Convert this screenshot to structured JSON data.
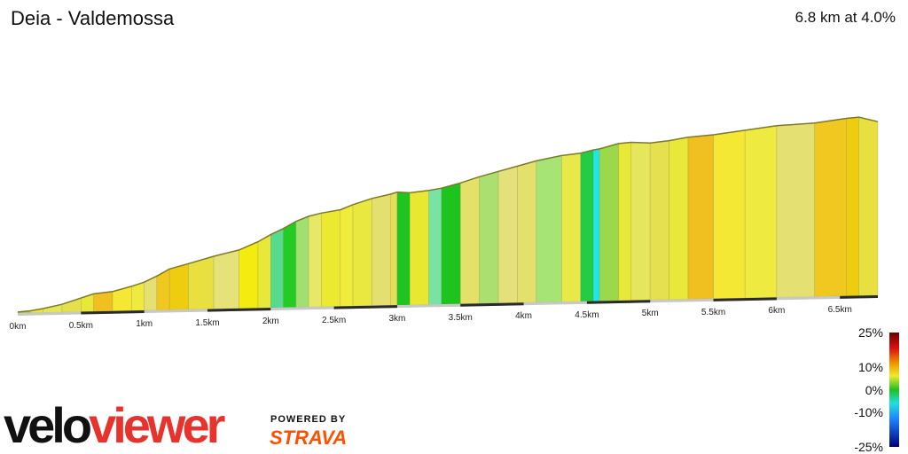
{
  "header": {
    "title": "Deia - Valdemossa",
    "summary": "6.8 km at 4.0%"
  },
  "chart_data": {
    "type": "area",
    "title": "Deia - Valdemossa",
    "xlabel": "",
    "ylabel": "",
    "x_ticks": [
      "0km",
      "0.5km",
      "1km",
      "1.5km",
      "2km",
      "2.5km",
      "3km",
      "3.5km",
      "4km",
      "4.5km",
      "5km",
      "5.5km",
      "6km",
      "6.5km"
    ],
    "xlim": [
      0,
      6.8
    ],
    "profile": [
      [
        0.0,
        1
      ],
      [
        0.1,
        2
      ],
      [
        0.2,
        4
      ],
      [
        0.35,
        8
      ],
      [
        0.5,
        14
      ],
      [
        0.6,
        18
      ],
      [
        0.75,
        20
      ],
      [
        0.9,
        25
      ],
      [
        1.0,
        29
      ],
      [
        1.1,
        35
      ],
      [
        1.2,
        42
      ],
      [
        1.35,
        47
      ],
      [
        1.55,
        54
      ],
      [
        1.75,
        60
      ],
      [
        1.9,
        68
      ],
      [
        2.0,
        75
      ],
      [
        2.1,
        81
      ],
      [
        2.2,
        88
      ],
      [
        2.3,
        93
      ],
      [
        2.4,
        96
      ],
      [
        2.55,
        99
      ],
      [
        2.65,
        104
      ],
      [
        2.8,
        110
      ],
      [
        2.95,
        114
      ],
      [
        3.0,
        116
      ],
      [
        3.1,
        115
      ],
      [
        3.25,
        117
      ],
      [
        3.35,
        119
      ],
      [
        3.5,
        124
      ],
      [
        3.65,
        130
      ],
      [
        3.8,
        135
      ],
      [
        3.95,
        140
      ],
      [
        4.1,
        145
      ],
      [
        4.3,
        150
      ],
      [
        4.45,
        152
      ],
      [
        4.55,
        155
      ],
      [
        4.6,
        156
      ],
      [
        4.75,
        161
      ],
      [
        4.85,
        162
      ],
      [
        5.0,
        161
      ],
      [
        5.15,
        163
      ],
      [
        5.3,
        166
      ],
      [
        5.5,
        168
      ],
      [
        5.75,
        172
      ],
      [
        6.0,
        176
      ],
      [
        6.3,
        178
      ],
      [
        6.55,
        182
      ],
      [
        6.65,
        183
      ],
      [
        6.8,
        178
      ]
    ],
    "segment_colors": [
      "#9bd84a",
      "#e8e838",
      "#e6e65c",
      "#e4e04e",
      "#e8e838",
      "#f0c020",
      "#f4e834",
      "#eeea40",
      "#e4e072",
      "#f0c820",
      "#eecc10",
      "#e8e040",
      "#e4e278",
      "#f4ec10",
      "#e8e838",
      "#56da8c",
      "#22cc22",
      "#a0e070",
      "#e8e868",
      "#ecea30",
      "#f0ec3c",
      "#e8e840",
      "#e4e070",
      "#e4e054",
      "#20c420",
      "#e8e830",
      "#78e4a4",
      "#1ec41e",
      "#e4e068",
      "#aae070",
      "#e4e07a",
      "#e4e06c",
      "#a6e474",
      "#e8e848",
      "#22cc44",
      "#22e6e6"
    ],
    "grade_scale": {
      "labels": [
        "25%",
        "10%",
        "0%",
        "-10%",
        "-25%"
      ],
      "values": [
        25,
        10,
        0,
        -10,
        -25
      ]
    },
    "grid": false
  },
  "branding": {
    "logo_part1": "velo",
    "logo_part2": "viewer",
    "powered_by": "POWERED BY",
    "strava": "STRAVA"
  }
}
